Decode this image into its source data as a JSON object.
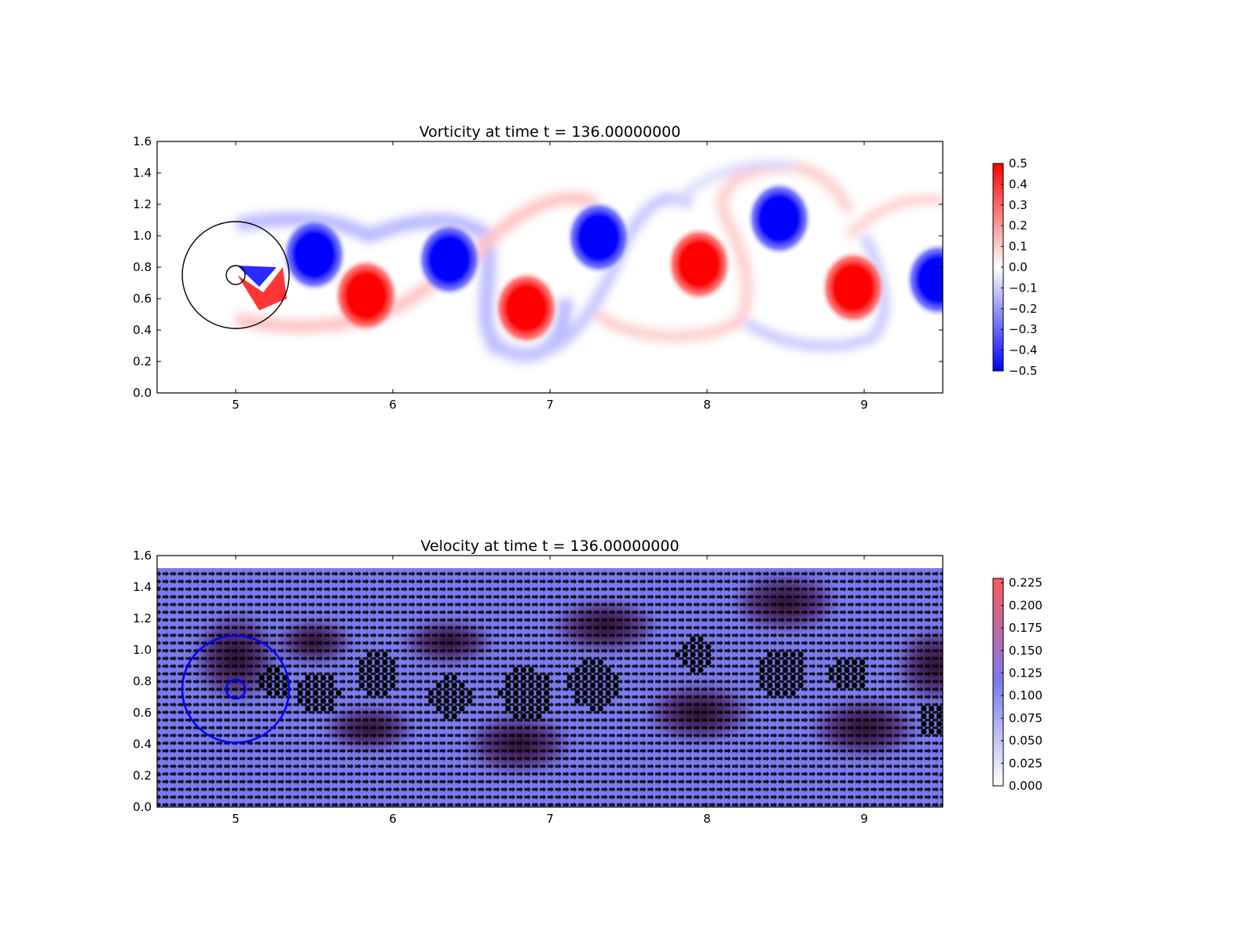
{
  "chart_data": [
    {
      "type": "heatmap",
      "title": "Vorticity at time t =   136.00000000",
      "xlabel": "",
      "ylabel": "",
      "xlim": [
        4.5,
        9.5
      ],
      "ylim": [
        0.0,
        1.6
      ],
      "xticks": [
        "5",
        "6",
        "7",
        "8",
        "9"
      ],
      "xtick_values": [
        5,
        6,
        7,
        8,
        9
      ],
      "yticks": [
        "0.0",
        "0.2",
        "0.4",
        "0.6",
        "0.8",
        "1.0",
        "1.2",
        "1.4",
        "1.6"
      ],
      "ytick_values": [
        0.0,
        0.2,
        0.4,
        0.6,
        0.8,
        1.0,
        1.2,
        1.4,
        1.6
      ],
      "grid": false,
      "colormap": "bwr",
      "colors": {
        "negative": "#0000ff",
        "zero": "#ffffff",
        "positive": "#ff0000"
      },
      "colorbar": {
        "min": -0.5,
        "max": 0.5,
        "ticks": [
          "0.5",
          "0.4",
          "0.3",
          "0.2",
          "0.1",
          "0.0",
          "−0.1",
          "−0.2",
          "−0.3",
          "−0.4",
          "−0.5"
        ],
        "tick_values": [
          0.5,
          0.4,
          0.3,
          0.2,
          0.1,
          0.0,
          -0.1,
          -0.2,
          -0.3,
          -0.4,
          -0.5
        ]
      },
      "vortices": [
        {
          "x": 5.5,
          "y": 0.88,
          "sign": "negative",
          "value": -0.5
        },
        {
          "x": 5.83,
          "y": 0.62,
          "sign": "positive",
          "value": 0.5
        },
        {
          "x": 6.36,
          "y": 0.85,
          "sign": "negative",
          "value": -0.5
        },
        {
          "x": 6.85,
          "y": 0.54,
          "sign": "positive",
          "value": 0.5
        },
        {
          "x": 7.31,
          "y": 0.99,
          "sign": "negative",
          "value": -0.5
        },
        {
          "x": 7.95,
          "y": 0.82,
          "sign": "positive",
          "value": 0.5
        },
        {
          "x": 8.46,
          "y": 1.11,
          "sign": "negative",
          "value": -0.5
        },
        {
          "x": 8.93,
          "y": 0.67,
          "sign": "positive",
          "value": 0.5
        },
        {
          "x": 9.47,
          "y": 0.72,
          "sign": "negative",
          "value": -0.5
        }
      ],
      "circles": [
        {
          "cx": 5.0,
          "cy": 0.75,
          "r": 0.34,
          "color": "#000000"
        },
        {
          "cx": 5.0,
          "cy": 0.75,
          "r": 0.06,
          "color": "#000000"
        }
      ]
    },
    {
      "type": "heatmap",
      "subtype": "quiver",
      "title": "Velocity at time t =   136.00000000",
      "xlabel": "",
      "ylabel": "",
      "xlim": [
        4.5,
        9.5
      ],
      "ylim": [
        0.0,
        1.6
      ],
      "xticks": [
        "5",
        "6",
        "7",
        "8",
        "9"
      ],
      "xtick_values": [
        5,
        6,
        7,
        8,
        9
      ],
      "yticks": [
        "0.0",
        "0.2",
        "0.4",
        "0.6",
        "0.8",
        "1.0",
        "1.2",
        "1.4",
        "1.6"
      ],
      "ytick_values": [
        0.0,
        0.2,
        0.4,
        0.6,
        0.8,
        1.0,
        1.2,
        1.4,
        1.6
      ],
      "grid": false,
      "field_top": 1.52,
      "colors": {
        "low": "#ffffff",
        "mid": "#7b7bf0",
        "high": "#ff5a5a",
        "arrow": "#000000"
      },
      "colorbar": {
        "min": 0.0,
        "max": 0.23,
        "ticks": [
          "0.225",
          "0.200",
          "0.175",
          "0.150",
          "0.125",
          "0.100",
          "0.075",
          "0.050",
          "0.025",
          "0.000"
        ],
        "tick_values": [
          0.225,
          0.2,
          0.175,
          0.15,
          0.125,
          0.1,
          0.075,
          0.05,
          0.025,
          0.0
        ]
      },
      "dark_regions": [
        {
          "x": 5.0,
          "y": 0.95,
          "rx": 0.28,
          "ry": 0.3
        },
        {
          "x": 5.5,
          "y": 1.05,
          "rx": 0.25,
          "ry": 0.15
        },
        {
          "x": 5.85,
          "y": 0.5,
          "rx": 0.3,
          "ry": 0.15
        },
        {
          "x": 6.35,
          "y": 1.05,
          "rx": 0.3,
          "ry": 0.15
        },
        {
          "x": 6.8,
          "y": 0.4,
          "rx": 0.35,
          "ry": 0.2
        },
        {
          "x": 7.35,
          "y": 1.15,
          "rx": 0.35,
          "ry": 0.18
        },
        {
          "x": 7.95,
          "y": 0.6,
          "rx": 0.35,
          "ry": 0.2
        },
        {
          "x": 8.5,
          "y": 1.3,
          "rx": 0.35,
          "ry": 0.2
        },
        {
          "x": 9.0,
          "y": 0.5,
          "rx": 0.35,
          "ry": 0.2
        },
        {
          "x": 9.45,
          "y": 0.9,
          "rx": 0.25,
          "ry": 0.25
        }
      ],
      "vortex_cores": [
        {
          "x": 5.25,
          "y": 0.78,
          "r": 0.1
        },
        {
          "x": 5.52,
          "y": 0.72,
          "r": 0.14
        },
        {
          "x": 5.9,
          "y": 0.85,
          "r": 0.14
        },
        {
          "x": 6.37,
          "y": 0.7,
          "r": 0.13
        },
        {
          "x": 6.85,
          "y": 0.72,
          "r": 0.17
        },
        {
          "x": 7.28,
          "y": 0.78,
          "r": 0.16
        },
        {
          "x": 7.92,
          "y": 0.97,
          "r": 0.11
        },
        {
          "x": 8.48,
          "y": 0.86,
          "r": 0.16
        },
        {
          "x": 8.9,
          "y": 0.85,
          "r": 0.12
        },
        {
          "x": 9.45,
          "y": 0.55,
          "r": 0.12
        }
      ],
      "circles": [
        {
          "cx": 5.0,
          "cy": 0.75,
          "r": 0.34,
          "color": "#0000ff"
        },
        {
          "cx": 5.0,
          "cy": 0.75,
          "r": 0.06,
          "color": "#0000ff"
        }
      ]
    }
  ]
}
